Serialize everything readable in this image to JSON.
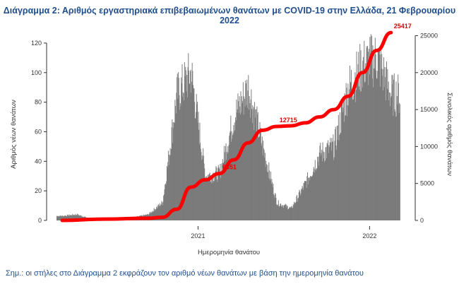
{
  "title": "Διάγραμμα 2: Αριθμός εργαστηριακά επιβεβαιωμένων θανάτων με COVID-19 στην Ελλάδα, 21 Φεβρουαρίου 2022",
  "footnote": "Σημ.: οι στήλες στο Διάγραμμα 2 εκφράζουν τον αριθμό νέων θανάτων με βάση την ημερομηνία θανάτου",
  "colors": {
    "bars": "#7a7a7a",
    "line": "#ff0000",
    "annotation": "#e00000",
    "title": "#1f4e8c"
  },
  "chart_data": {
    "type": "bar",
    "title": "Διάγραμμα 2: Αριθμός εργαστηριακά επιβεβαιωμένων θανάτων με COVID-19 στην Ελλάδα, 21 Φεβρουαρίου 2022",
    "xlabel": "Ημερομηνία θανάτου",
    "ylabel_left": "Αριθμός νέων θανάτων",
    "ylabel_right": "Συνολικός αριθμός θανάτων",
    "x_ticks": [
      "2021",
      "2022"
    ],
    "y_left_ticks": [
      0,
      20,
      40,
      60,
      80,
      100,
      120
    ],
    "y_left_lim": [
      0,
      130
    ],
    "y_right_ticks": [
      0,
      5000,
      10000,
      15000,
      20000,
      25000
    ],
    "y_right_lim": [
      0,
      26000
    ],
    "x_range": [
      "2020-03",
      "2022-02"
    ],
    "grid": false,
    "series": [
      {
        "axis": "left",
        "style": "bars",
        "x": [
          "2020-03",
          "2020-04",
          "2020-05",
          "2020-06",
          "2020-07",
          "2020-08",
          "2020-09",
          "2020-10",
          "2020-11",
          "2020-12",
          "2021-01",
          "2021-02",
          "2021-03",
          "2021-04",
          "2021-05",
          "2021-06",
          "2021-07",
          "2021-08",
          "2021-09",
          "2021-10",
          "2021-11",
          "2021-12",
          "2022-01",
          "2022-02"
        ],
        "values": [
          3,
          4,
          1,
          1,
          1,
          2,
          4,
          12,
          85,
          100,
          30,
          32,
          70,
          90,
          50,
          12,
          8,
          25,
          45,
          50,
          90,
          105,
          110,
          85
        ]
      },
      {
        "axis": "right",
        "style": "line",
        "x": [
          "2020-03",
          "2020-06",
          "2020-09",
          "2020-10",
          "2020-11",
          "2020-12",
          "2021-01",
          "2021-02",
          "2021-03",
          "2021-04",
          "2021-05",
          "2021-06",
          "2021-07",
          "2021-08",
          "2021-09",
          "2021-10",
          "2021-11",
          "2021-12",
          "2022-01",
          "2022-02"
        ],
        "values": [
          0,
          180,
          300,
          420,
          1500,
          4500,
          5500,
          6350,
          8200,
          10500,
          12200,
          12715,
          12800,
          13200,
          14000,
          15000,
          16800,
          20000,
          23000,
          25417
        ]
      }
    ],
    "annotations": [
      "6351",
      "12715",
      "25417"
    ]
  }
}
